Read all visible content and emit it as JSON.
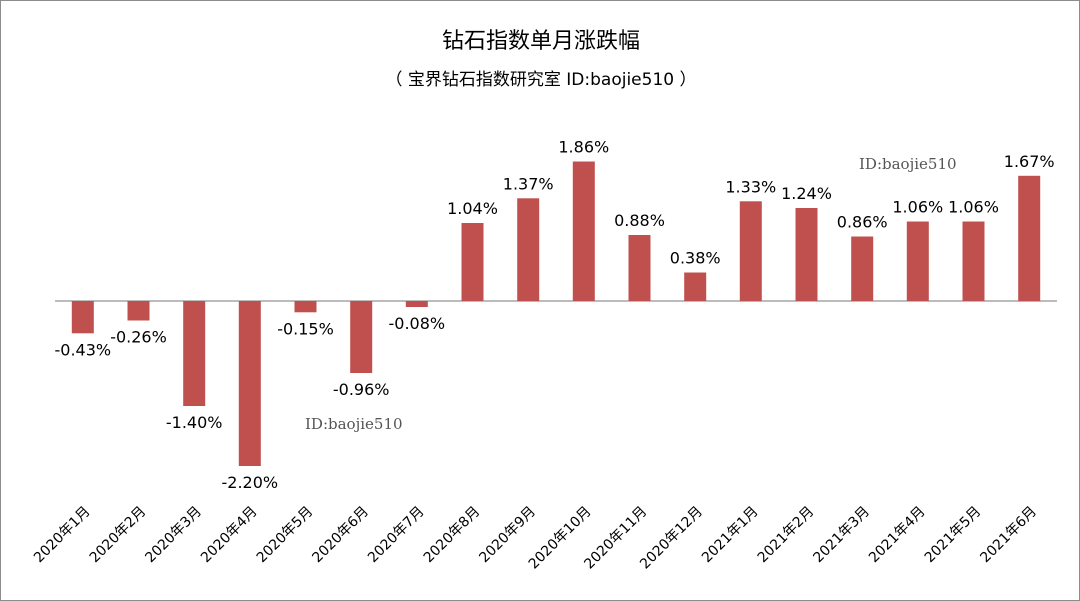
{
  "chart_data": {
    "type": "bar",
    "title": "钻石指数单月涨跌幅",
    "subtitle": "（ 宝界钻石指数研究室  ID:baojie510 ）",
    "categories": [
      "2020年1月",
      "2020年2月",
      "2020年3月",
      "2020年4月",
      "2020年5月",
      "2020年6月",
      "2020年7月",
      "2020年8月",
      "2020年9月",
      "2020年10月",
      "2020年11月",
      "2020年12月",
      "2021年1月",
      "2021年2月",
      "2021年3月",
      "2021年4月",
      "2021年5月",
      "2021年6月"
    ],
    "values": [
      -0.43,
      -0.26,
      -1.4,
      -2.2,
      -0.15,
      -0.96,
      -0.08,
      1.04,
      1.37,
      1.86,
      0.88,
      0.38,
      1.33,
      1.24,
      0.86,
      1.06,
      1.06,
      1.67
    ],
    "data_labels": [
      "-0.43%",
      "-0.26%",
      "-1.40%",
      "-2.20%",
      "-0.15%",
      "-0.96%",
      "-0.08%",
      "1.04%",
      "1.37%",
      "1.86%",
      "0.88%",
      "0.38%",
      "1.33%",
      "1.24%",
      "0.86%",
      "1.06%",
      "1.06%",
      "1.67%"
    ],
    "bar_color": "#c0504d",
    "xlabel": "",
    "ylabel": "",
    "grid": false,
    "legend": "none"
  },
  "watermarks": [
    "ID:baojie510",
    "ID:baojie510"
  ]
}
